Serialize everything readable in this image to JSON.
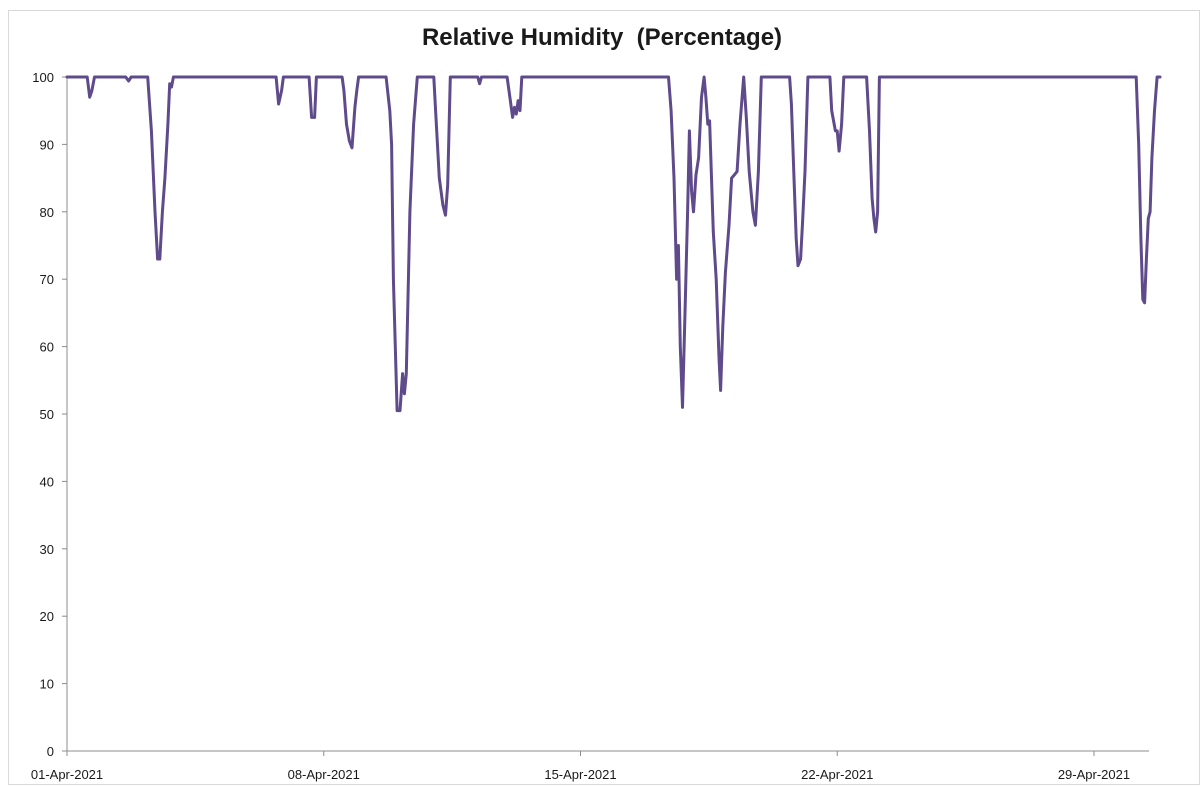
{
  "chart_data": {
    "type": "line",
    "title": "Relative Humidity  (Percentage)",
    "xlabel": "",
    "ylabel": "",
    "x_tick_labels": [
      "01-Apr-2021",
      "08-Apr-2021",
      "15-Apr-2021",
      "22-Apr-2021",
      "29-Apr-2021"
    ],
    "x_tick_days": [
      1,
      8,
      15,
      22,
      29
    ],
    "xlim_days": [
      1,
      30.5
    ],
    "y_ticks": [
      0,
      10,
      20,
      30,
      40,
      50,
      60,
      70,
      80,
      90,
      100
    ],
    "ylim": [
      0,
      100
    ],
    "grid": false,
    "legend": "none",
    "series": [
      {
        "color": "#5f4b8b",
        "points": [
          [
            1.0,
            100
          ],
          [
            1.55,
            100
          ],
          [
            1.62,
            97
          ],
          [
            1.68,
            98
          ],
          [
            1.75,
            100
          ],
          [
            2.6,
            100
          ],
          [
            2.68,
            99.4
          ],
          [
            2.75,
            100
          ],
          [
            3.2,
            100
          ],
          [
            3.3,
            92
          ],
          [
            3.4,
            80
          ],
          [
            3.47,
            73
          ],
          [
            3.53,
            73
          ],
          [
            3.6,
            80
          ],
          [
            3.67,
            85
          ],
          [
            3.75,
            93
          ],
          [
            3.8,
            99
          ],
          [
            3.85,
            98.5
          ],
          [
            3.9,
            100
          ],
          [
            6.7,
            100
          ],
          [
            6.77,
            96
          ],
          [
            6.85,
            98
          ],
          [
            6.9,
            100
          ],
          [
            7.6,
            100
          ],
          [
            7.67,
            94
          ],
          [
            7.75,
            94
          ],
          [
            7.8,
            100
          ],
          [
            8.5,
            100
          ],
          [
            8.55,
            98
          ],
          [
            8.62,
            93
          ],
          [
            8.7,
            90.5
          ],
          [
            8.77,
            89.5
          ],
          [
            8.85,
            95.5
          ],
          [
            8.9,
            98
          ],
          [
            8.95,
            100
          ],
          [
            9.7,
            100
          ],
          [
            9.8,
            95
          ],
          [
            9.85,
            90
          ],
          [
            9.9,
            70
          ],
          [
            10.0,
            50.5
          ],
          [
            10.08,
            50.5
          ],
          [
            10.15,
            56
          ],
          [
            10.2,
            53
          ],
          [
            10.25,
            56
          ],
          [
            10.35,
            80
          ],
          [
            10.45,
            93
          ],
          [
            10.55,
            100
          ],
          [
            11.0,
            100
          ],
          [
            11.05,
            95
          ],
          [
            11.15,
            85
          ],
          [
            11.25,
            81
          ],
          [
            11.32,
            79.5
          ],
          [
            11.38,
            84
          ],
          [
            11.45,
            100
          ],
          [
            12.2,
            100
          ],
          [
            12.25,
            99
          ],
          [
            12.3,
            100
          ],
          [
            13.0,
            100
          ],
          [
            13.1,
            96
          ],
          [
            13.15,
            94
          ],
          [
            13.2,
            95.5
          ],
          [
            13.25,
            94.5
          ],
          [
            13.3,
            96.5
          ],
          [
            13.35,
            95
          ],
          [
            13.4,
            100
          ],
          [
            17.4,
            100
          ],
          [
            17.47,
            95
          ],
          [
            17.55,
            85
          ],
          [
            17.62,
            70
          ],
          [
            17.67,
            75
          ],
          [
            17.72,
            60
          ],
          [
            17.78,
            51
          ],
          [
            17.85,
            65
          ],
          [
            17.92,
            80
          ],
          [
            17.97,
            92
          ],
          [
            18.03,
            83
          ],
          [
            18.08,
            80
          ],
          [
            18.15,
            85.5
          ],
          [
            18.22,
            88
          ],
          [
            18.3,
            97
          ],
          [
            18.37,
            100
          ],
          [
            18.42,
            97
          ],
          [
            18.47,
            93
          ],
          [
            18.52,
            93.5
          ],
          [
            18.62,
            77
          ],
          [
            18.7,
            70
          ],
          [
            18.78,
            58
          ],
          [
            18.82,
            53.5
          ],
          [
            18.88,
            63
          ],
          [
            18.95,
            71
          ],
          [
            19.05,
            78
          ],
          [
            19.12,
            85
          ],
          [
            19.2,
            85.5
          ],
          [
            19.27,
            86
          ],
          [
            19.35,
            93
          ],
          [
            19.45,
            100
          ],
          [
            19.52,
            94
          ],
          [
            19.6,
            86
          ],
          [
            19.7,
            80
          ],
          [
            19.77,
            78
          ],
          [
            19.85,
            86
          ],
          [
            19.93,
            100
          ],
          [
            20.7,
            100
          ],
          [
            20.75,
            96
          ],
          [
            20.82,
            85
          ],
          [
            20.88,
            76
          ],
          [
            20.93,
            72
          ],
          [
            21.0,
            73
          ],
          [
            21.05,
            78
          ],
          [
            21.12,
            86
          ],
          [
            21.2,
            100
          ],
          [
            21.8,
            100
          ],
          [
            21.85,
            95
          ],
          [
            21.95,
            92
          ],
          [
            22.0,
            92
          ],
          [
            22.05,
            89
          ],
          [
            22.12,
            93
          ],
          [
            22.18,
            100
          ],
          [
            22.8,
            100
          ],
          [
            22.88,
            92
          ],
          [
            22.95,
            82
          ],
          [
            23.0,
            79
          ],
          [
            23.05,
            77
          ],
          [
            23.1,
            80
          ],
          [
            23.15,
            100
          ],
          [
            30.15,
            100
          ],
          [
            30.22,
            90
          ],
          [
            30.28,
            76
          ],
          [
            30.33,
            67
          ],
          [
            30.38,
            66.5
          ],
          [
            30.43,
            73
          ],
          [
            30.48,
            79
          ],
          [
            30.53,
            80
          ],
          [
            30.58,
            88
          ],
          [
            30.65,
            95
          ],
          [
            30.72,
            100
          ],
          [
            30.8,
            100
          ]
        ]
      }
    ]
  }
}
